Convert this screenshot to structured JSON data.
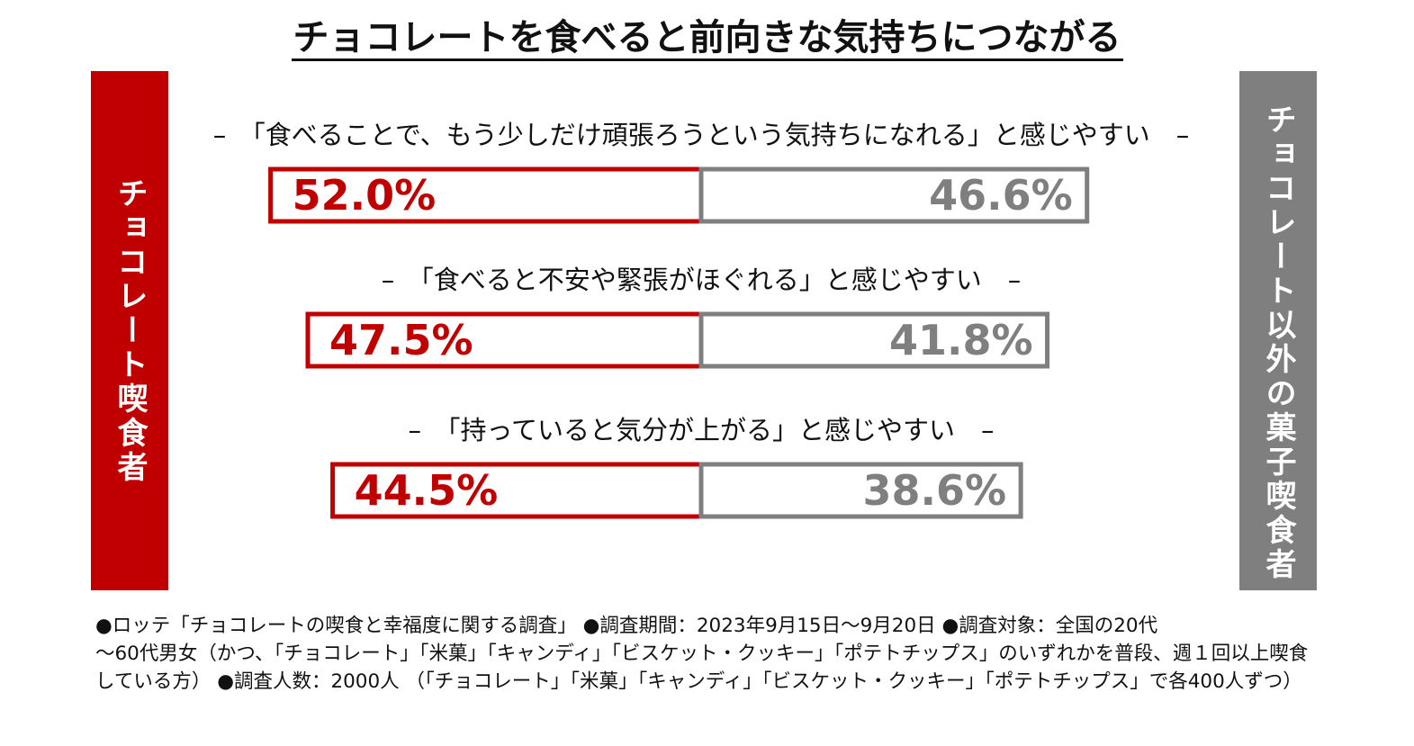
{
  "title": "チョコレートを食べると前向きな気持ちにつながる",
  "left_panel_label": "チョコレート喫食者",
  "right_panel_label": "チョコレート以外の菓子喫食者",
  "colors": {
    "chocolate": "#c00000",
    "other": "#7f7f7f",
    "text": "#111111"
  },
  "chart_data": {
    "type": "bar",
    "categories": [
      "–　「食べることで、もう少しだけ頑張ろうという気持ちになれる」と感じやすい　–",
      "–　「食べると不安や緊張がほぐれる」と感じやすい　–",
      "–　「持っていると気分が上がる」と感じやすい　–"
    ],
    "series": [
      {
        "name": "チョコレート喫食者",
        "values": [
          52.0,
          47.5,
          44.5
        ],
        "labels": [
          "52.0%",
          "47.5%",
          "44.5%"
        ]
      },
      {
        "name": "チョコレート以外の菓子喫食者",
        "values": [
          46.6,
          41.8,
          38.6
        ],
        "labels": [
          "46.6%",
          "41.8%",
          "38.6%"
        ]
      }
    ]
  },
  "footnote": {
    "line1": "●ロッテ「チョコレートの喫食と幸福度に関する調査」 ●調査期間：2023年9月15日～9月20日 ●調査対象：全国の20代",
    "line2": "～60代男女（かつ、「チョコレート」「米菓」「キャンディ」「ビスケット・クッキー」「ポテトチップス」のいずれかを普段、週１回以上喫食",
    "line3": "している方） ●調査人数：2000人 （「チョコレート」「米菓」「キャンディ」「ビスケット・クッキー」「ポテトチップス」で各400人ずつ）"
  }
}
